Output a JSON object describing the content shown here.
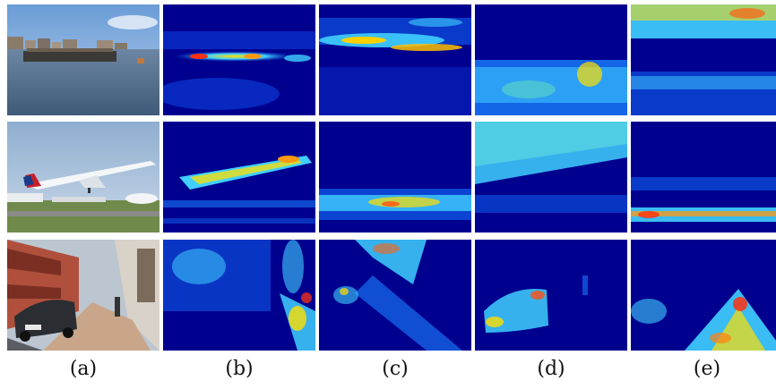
{
  "figure": {
    "columns": [
      {
        "id": "a",
        "label": "(a)"
      },
      {
        "id": "b",
        "label": "(b)"
      },
      {
        "id": "c",
        "label": "(c)"
      },
      {
        "id": "d",
        "label": "(d)"
      },
      {
        "id": "e",
        "label": "(e)"
      }
    ],
    "rows": [
      {
        "id": "harbor",
        "photo": "harbor-boat-photo"
      },
      {
        "id": "airplane",
        "photo": "airplane-takeoff-photo"
      },
      {
        "id": "street",
        "photo": "street-car-photo"
      }
    ],
    "colors": {
      "heatmap_low": "#00008f",
      "heatmap_mid": "#00c8ff",
      "heatmap_high": "#ffe000",
      "heatmap_peak": "#e01010"
    }
  }
}
